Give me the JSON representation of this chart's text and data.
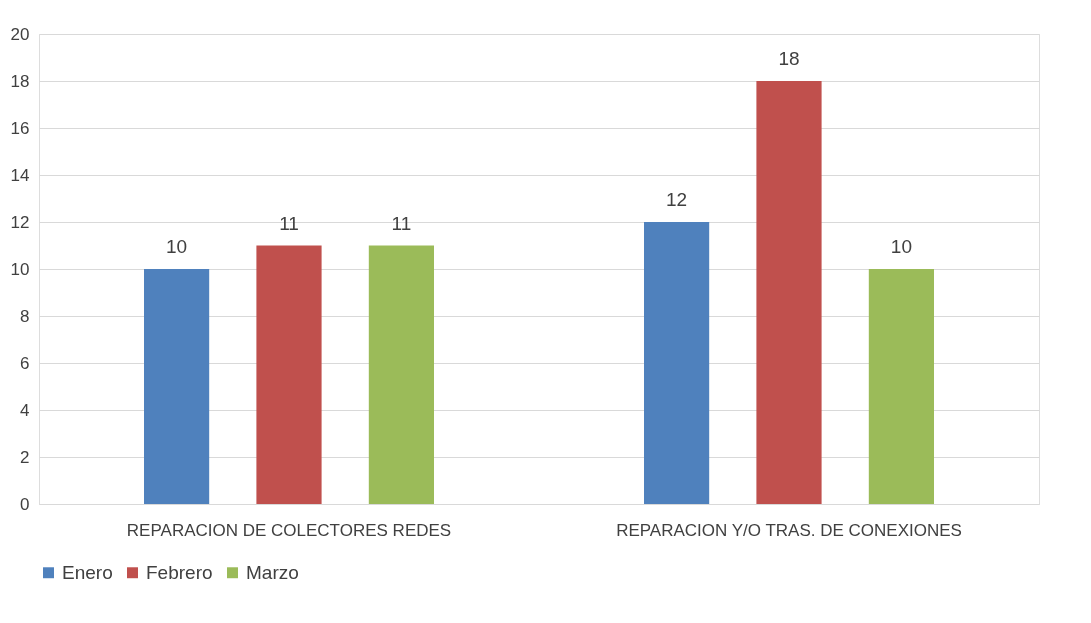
{
  "chart_data": {
    "type": "bar",
    "categories": [
      "REPARACION DE COLECTORES REDES",
      "REPARACION Y/O TRAS. DE CONEXIONES"
    ],
    "series": [
      {
        "name": "Enero",
        "color": "#4f81bd",
        "values": [
          10,
          12
        ]
      },
      {
        "name": "Febrero",
        "color": "#c0504d",
        "values": [
          11,
          18
        ]
      },
      {
        "name": "Marzo",
        "color": "#9bbb59",
        "values": [
          11,
          10
        ]
      }
    ],
    "ylim": [
      0,
      20
    ],
    "yticks": [
      0,
      2,
      4,
      6,
      8,
      10,
      12,
      14,
      16,
      18,
      20
    ],
    "grid": "y",
    "legend": "bottom",
    "data_labels": true
  }
}
